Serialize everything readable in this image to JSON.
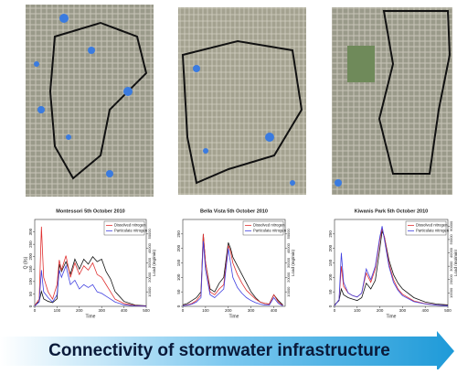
{
  "banner": "Connectivity of stormwater infrastructure",
  "chart_data": [
    {
      "type": "line",
      "title": "Montessori 5th October 2010",
      "x_label": "Time",
      "y_label": "Q (l/s)",
      "y2_label": "Load (mg/min)",
      "x": [
        0,
        20,
        30,
        40,
        60,
        80,
        100,
        110,
        120,
        140,
        160,
        180,
        200,
        220,
        240,
        260,
        280,
        300,
        320,
        340,
        360,
        400,
        450,
        500
      ],
      "xlim": [
        0,
        500
      ],
      "xticks": [
        0,
        100,
        200,
        300,
        400,
        500
      ],
      "ylim": [
        0,
        350
      ],
      "yticks": [
        0,
        50,
        100,
        150,
        200,
        250,
        300
      ],
      "y2lim": [
        0,
        60000
      ],
      "y2ticks": [
        10000,
        20000,
        30000,
        40000,
        50000
      ],
      "legend": "upper right",
      "series": [
        {
          "color": "#111111",
          "values": [
            5,
            20,
            60,
            30,
            20,
            15,
            30,
            170,
            140,
            180,
            130,
            190,
            150,
            190,
            170,
            200,
            180,
            190,
            140,
            110,
            60,
            20,
            5,
            2
          ]
        },
        {
          "name": "Dissolved nitrogen",
          "color": "#e03030",
          "axis": "y2",
          "values": [
            500,
            5000,
            55000,
            20000,
            10000,
            5000,
            15000,
            32000,
            25000,
            35000,
            20000,
            30000,
            22000,
            28000,
            25000,
            30000,
            22000,
            20000,
            15000,
            10000,
            5000,
            2000,
            500,
            200
          ]
        },
        {
          "name": "Particulate nitrogen",
          "color": "#4040e0",
          "axis": "y2",
          "values": [
            300,
            3000,
            25000,
            10000,
            6000,
            3000,
            8000,
            25000,
            20000,
            28000,
            15000,
            18000,
            12000,
            15000,
            13000,
            15000,
            10000,
            9000,
            7000,
            5000,
            3000,
            1000,
            300,
            100
          ]
        }
      ]
    },
    {
      "type": "line",
      "title": "Bella Vista 5th October 2010",
      "x_label": "Time",
      "y2_label": "Load (mg/min)",
      "x": [
        0,
        20,
        40,
        60,
        80,
        90,
        100,
        120,
        140,
        160,
        180,
        200,
        210,
        220,
        240,
        260,
        280,
        300,
        320,
        340,
        360,
        380,
        400,
        420,
        440
      ],
      "xlim": [
        0,
        450
      ],
      "xticks": [
        0,
        100,
        200,
        300,
        400
      ],
      "ylim": [
        0,
        300
      ],
      "yticks": [
        0,
        50,
        100,
        150,
        200,
        250
      ],
      "y2lim": [
        0,
        60000
      ],
      "y2ticks": [
        10000,
        20000,
        30000,
        40000,
        50000
      ],
      "legend": "upper right",
      "series": [
        {
          "color": "#111111",
          "values": [
            5,
            10,
            20,
            30,
            50,
            250,
            150,
            60,
            50,
            80,
            100,
            220,
            200,
            170,
            140,
            110,
            80,
            50,
            30,
            15,
            10,
            8,
            40,
            20,
            5
          ]
        },
        {
          "name": "Dissolved nitrogen",
          "color": "#e03030",
          "axis": "y2",
          "values": [
            500,
            1000,
            2000,
            4000,
            8000,
            50000,
            30000,
            10000,
            8000,
            12000,
            15000,
            42000,
            38000,
            30000,
            22000,
            16000,
            11000,
            8000,
            5000,
            3000,
            2000,
            1500,
            8000,
            3000,
            500
          ]
        },
        {
          "name": "Particulate nitrogen",
          "color": "#4040e0",
          "axis": "y2",
          "values": [
            400,
            800,
            1500,
            3000,
            6000,
            45000,
            25000,
            8000,
            6000,
            9000,
            12000,
            40000,
            30000,
            20000,
            13000,
            9000,
            6000,
            4000,
            2500,
            1500,
            1000,
            800,
            6000,
            2000,
            300
          ]
        }
      ]
    },
    {
      "type": "line",
      "title": "Kiwanis Park 5th October 2010",
      "x_label": "Time",
      "y2_label": "Load (mg/min)",
      "x": [
        0,
        20,
        30,
        40,
        60,
        80,
        100,
        120,
        140,
        160,
        180,
        200,
        210,
        220,
        240,
        260,
        280,
        300,
        350,
        400,
        450,
        500
      ],
      "xlim": [
        0,
        500
      ],
      "xticks": [
        0,
        100,
        200,
        300,
        400,
        500
      ],
      "ylim": [
        0,
        300
      ],
      "yticks": [
        0,
        50,
        100,
        150,
        200,
        250
      ],
      "y2lim": [
        0,
        65000
      ],
      "y2ticks": [
        10000,
        20000,
        30000,
        40000,
        50000,
        60000
      ],
      "legend": "upper right",
      "series": [
        {
          "color": "#111111",
          "values": [
            5,
            20,
            60,
            40,
            30,
            25,
            20,
            30,
            80,
            60,
            90,
            200,
            260,
            240,
            160,
            110,
            80,
            60,
            30,
            15,
            8,
            5
          ]
        },
        {
          "name": "Dissolved nitrogen",
          "color": "#e03030",
          "axis": "y2",
          "values": [
            500,
            5000,
            30000,
            15000,
            10000,
            8000,
            7000,
            10000,
            25000,
            18000,
            28000,
            50000,
            58000,
            52000,
            32000,
            20000,
            13000,
            9000,
            4000,
            2000,
            1000,
            500
          ]
        },
        {
          "name": "Particulate nitrogen",
          "color": "#4040e0",
          "axis": "y2",
          "values": [
            400,
            5000,
            40000,
            18000,
            10000,
            8000,
            7000,
            10000,
            28000,
            20000,
            30000,
            52000,
            60000,
            50000,
            30000,
            18000,
            12000,
            8000,
            3500,
            1800,
            900,
            400
          ]
        }
      ]
    }
  ]
}
